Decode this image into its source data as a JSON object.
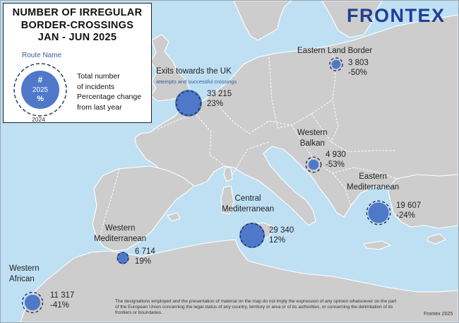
{
  "legend": {
    "title_lines": [
      "NUMBER OF IRREGULAR",
      "BORDER-CROSSINGS",
      "JAN - JUN 2025"
    ],
    "route_name": "Route Name",
    "bubble_lines": [
      "#",
      "2025",
      "%"
    ],
    "description_lines": [
      "Total number",
      "of incidents",
      "Percentage change",
      "from last year"
    ],
    "previous_year": "2024"
  },
  "logo": {
    "text": "FRONTEX",
    "color": "#1f3f95"
  },
  "colors": {
    "sea": "#bfe0f3",
    "land": "#cdcdcd",
    "bubble_fill": "#4f78c9",
    "bubble_ring": "#1c2f57"
  },
  "routes": [
    {
      "id": "eastern-land-border",
      "name_lines": [
        "Eastern Land Border"
      ],
      "value": "3 803",
      "change": "-50%",
      "count": 3803,
      "count_2024": 7606
    },
    {
      "id": "exits-towards-uk",
      "name_lines": [
        "Exits towards the UK"
      ],
      "subtitle": "attempts and successful crossings",
      "value": "33 215",
      "change": "23%",
      "count": 33215,
      "count_2024": 27004
    },
    {
      "id": "western-balkan",
      "name_lines": [
        "Western",
        "Balkan"
      ],
      "value": "4 930",
      "change": "-53%",
      "count": 4930,
      "count_2024": 10489
    },
    {
      "id": "eastern-mediterranean",
      "name_lines": [
        "Eastern",
        "Mediterranean"
      ],
      "value": "19 607",
      "change": "-24%",
      "count": 19607,
      "count_2024": 25799
    },
    {
      "id": "central-mediterranean",
      "name_lines": [
        "Central",
        "Mediterranean"
      ],
      "value": "29 340",
      "change": "12%",
      "count": 29340,
      "count_2024": 26196
    },
    {
      "id": "western-mediterranean",
      "name_lines": [
        "Western",
        "Mediterranean"
      ],
      "value": "6 714",
      "change": "19%",
      "count": 6714,
      "count_2024": 5642
    },
    {
      "id": "western-african",
      "name_lines": [
        "Western",
        "African"
      ],
      "value": "11 317",
      "change": "-41%",
      "count": 11317,
      "count_2024": 19181
    }
  ],
  "disclaimer": "The designations employed and the presentation of material on the map do not imply the expression of any opinion whatsoever on the part of the European Union concerning the legal status of any country, territory or area or of its authorities, or concerning the delimitation of its frontiers or boundaries.",
  "source": "Frontex 2025"
}
